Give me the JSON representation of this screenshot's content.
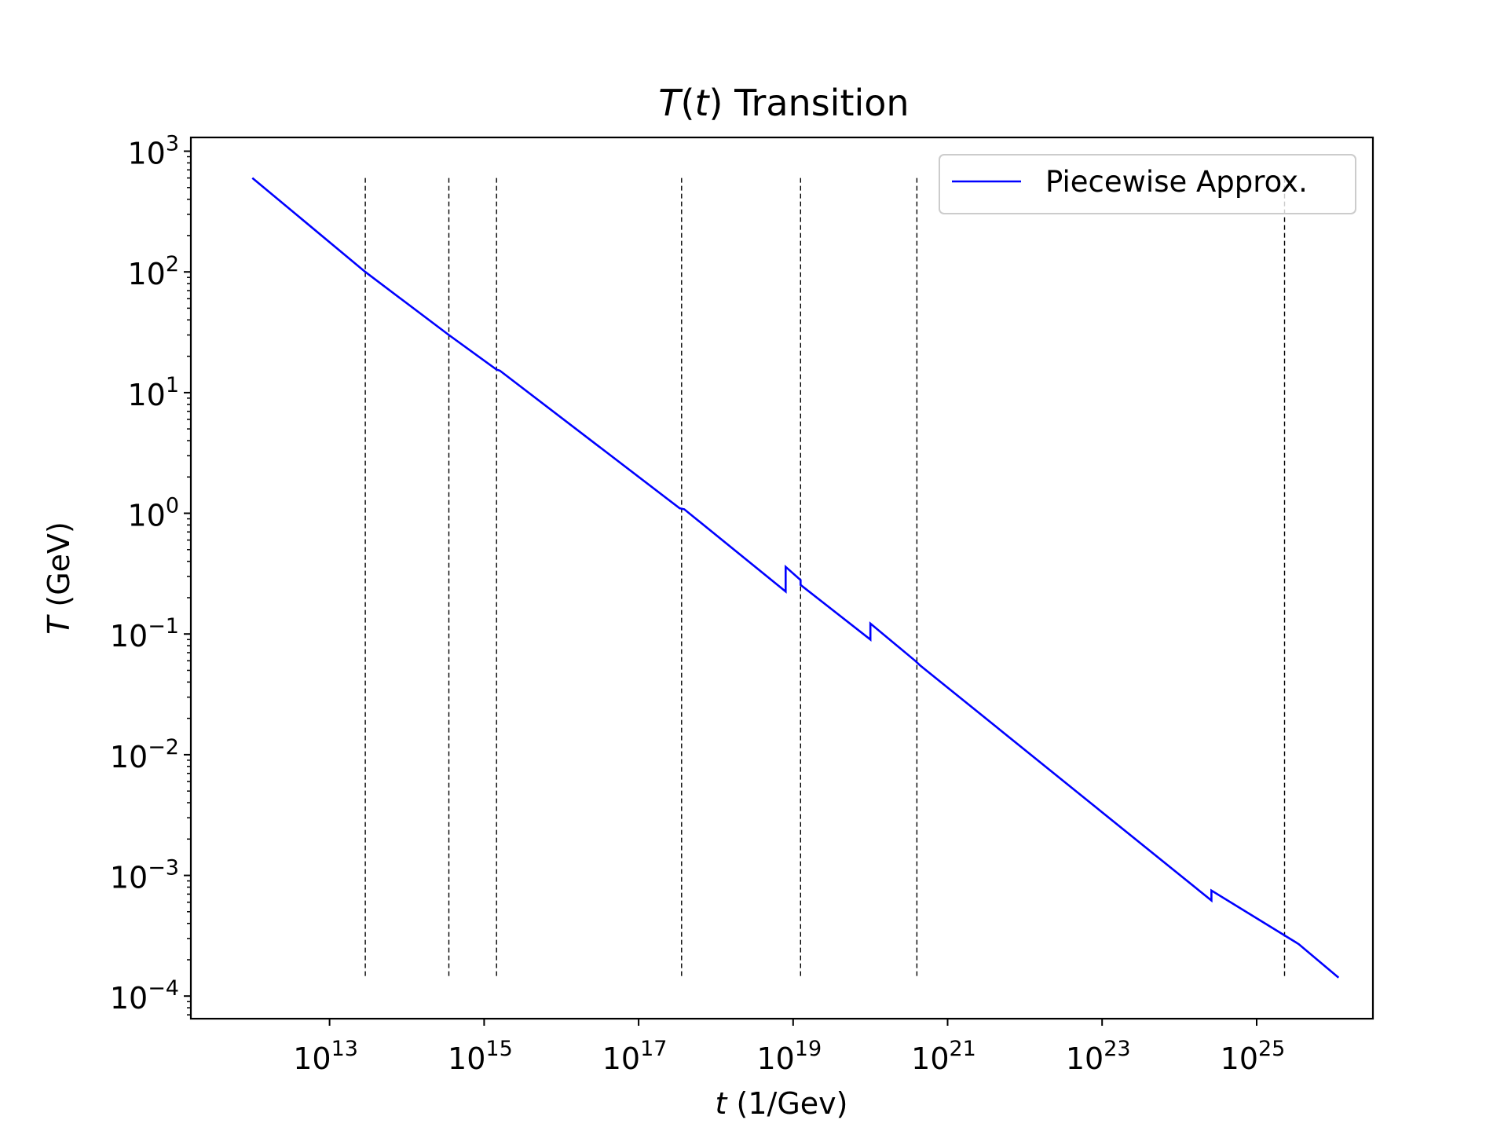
{
  "chart_data": {
    "type": "line",
    "title": {
      "prefix": "T",
      "open": "(",
      "var": "t",
      "close": ")",
      "suffix": " Transition"
    },
    "xlabel": {
      "var": "t",
      "rest": " (1/Gev)"
    },
    "ylabel": {
      "var": "T",
      "rest": " (GeV)"
    },
    "x_scale": "log",
    "y_scale": "log",
    "xlim": [
      160000000000.0,
      3.2e+26
    ],
    "ylim": [
      6.5e-05,
      1300.0
    ],
    "grid": false,
    "legend_position": "upper right",
    "x_ticks": [
      {
        "value": 10000000000000.0,
        "base": "10",
        "exp": "13"
      },
      {
        "value": 1000000000000000.0,
        "base": "10",
        "exp": "15"
      },
      {
        "value": 1e+17,
        "base": "10",
        "exp": "17"
      },
      {
        "value": 1e+19,
        "base": "10",
        "exp": "19"
      },
      {
        "value": 1e+21,
        "base": "10",
        "exp": "21"
      },
      {
        "value": 1e+23,
        "base": "10",
        "exp": "23"
      },
      {
        "value": 1e+25,
        "base": "10",
        "exp": "25"
      }
    ],
    "y_ticks": [
      {
        "value": 1000.0,
        "base": "10",
        "exp": "3"
      },
      {
        "value": 100.0,
        "base": "10",
        "exp": "2"
      },
      {
        "value": 10.0,
        "base": "10",
        "exp": "1"
      },
      {
        "value": 1.0,
        "base": "10",
        "exp": "0"
      },
      {
        "value": 0.1,
        "base": "10",
        "exp": "−1"
      },
      {
        "value": 0.01,
        "base": "10",
        "exp": "−2"
      },
      {
        "value": 0.001,
        "base": "10",
        "exp": "−3"
      },
      {
        "value": 0.0001,
        "base": "10",
        "exp": "−4"
      }
    ],
    "series": [
      {
        "name": "Piecewise Approx.",
        "color": "#0000ff",
        "points": [
          [
            1000000000000.0,
            600
          ],
          [
            29000000000000.0,
            100
          ],
          [
            350000000000000.0,
            30
          ],
          [
            1450000000000000.0,
            15.5
          ],
          [
            1600000000000000.0,
            15.2
          ],
          [
            3.4e+17,
            1.1
          ],
          [
            3.9e+17,
            1.08
          ],
          [
            8e+18,
            0.225
          ],
          [
            8e+18,
            0.36
          ],
          [
            1.25e+19,
            0.28
          ],
          [
            1.25e+19,
            0.255
          ],
          [
            1e+20,
            0.09
          ],
          [
            1e+20,
            0.122
          ],
          [
            3.8e+20,
            0.06
          ],
          [
            4.4e+20,
            0.055
          ],
          [
            2.6e+24,
            0.00062
          ],
          [
            2.6e+24,
            0.00075
          ],
          [
            3.5e+25,
            0.00027
          ],
          [
            1.15e+26,
            0.000142
          ]
        ]
      }
    ],
    "vertical_lines": {
      "style": "dashed",
      "color": "#000000",
      "x": [
        29000000000000.0,
        350000000000000.0,
        1450000000000000.0,
        3.6e+17,
        1.25e+19,
        4e+20,
        2.3e+25
      ],
      "y_range": [
        0.000145,
        600
      ]
    }
  }
}
